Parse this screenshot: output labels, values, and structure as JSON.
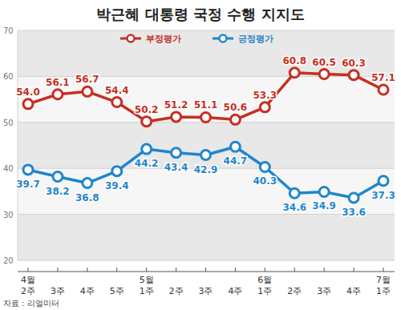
{
  "chart_data": {
    "type": "line",
    "title": "박근혜 대통령 국정 수행 지지도",
    "source": "자료 : 리얼미터",
    "categories": [
      "4월 2주",
      "3주",
      "4주",
      "5주",
      "5월 1주",
      "2주",
      "3주",
      "4주",
      "6월 1주",
      "2주",
      "3주",
      "4주",
      "7월 1주"
    ],
    "series": [
      {
        "name": "부정평가",
        "color": "#c62f23",
        "marker": "circle",
        "values": [
          54.0,
          56.1,
          56.7,
          54.4,
          50.2,
          51.2,
          51.1,
          50.6,
          53.3,
          60.8,
          60.5,
          60.3,
          57.1
        ],
        "value_labels": [
          "54.0",
          "56.1",
          "56.7",
          "54.4",
          "50.2",
          "51.2",
          "51.1",
          "50.6",
          "53.3",
          "60.8",
          "60.5",
          "60.3",
          "57.1"
        ]
      },
      {
        "name": "긍정평가",
        "color": "#1f86cc",
        "marker": "circle",
        "values": [
          39.7,
          38.2,
          36.8,
          39.4,
          44.2,
          43.4,
          42.9,
          44.7,
          40.3,
          34.6,
          34.9,
          33.6,
          37.3
        ],
        "value_labels": [
          "39.7",
          "38.2",
          "36.8",
          "39.4",
          "44.2",
          "43.4",
          "42.9",
          "44.7",
          "40.3",
          "34.6",
          "34.9",
          "33.6",
          "37.3"
        ]
      }
    ],
    "ylim": [
      20,
      70
    ],
    "yticks": [
      20,
      30,
      40,
      50,
      60,
      70
    ],
    "grid": true,
    "legend": "top",
    "data_labels": true
  }
}
